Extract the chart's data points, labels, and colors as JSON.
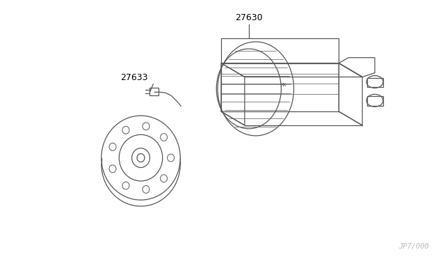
{
  "background_color": "#ffffff",
  "line_color": "#555555",
  "label_color": "#000000",
  "label_27630": "27630",
  "label_27633": "27633",
  "watermark": "JP7/000",
  "fig_width": 6.4,
  "fig_height": 3.72,
  "dpi": 100
}
